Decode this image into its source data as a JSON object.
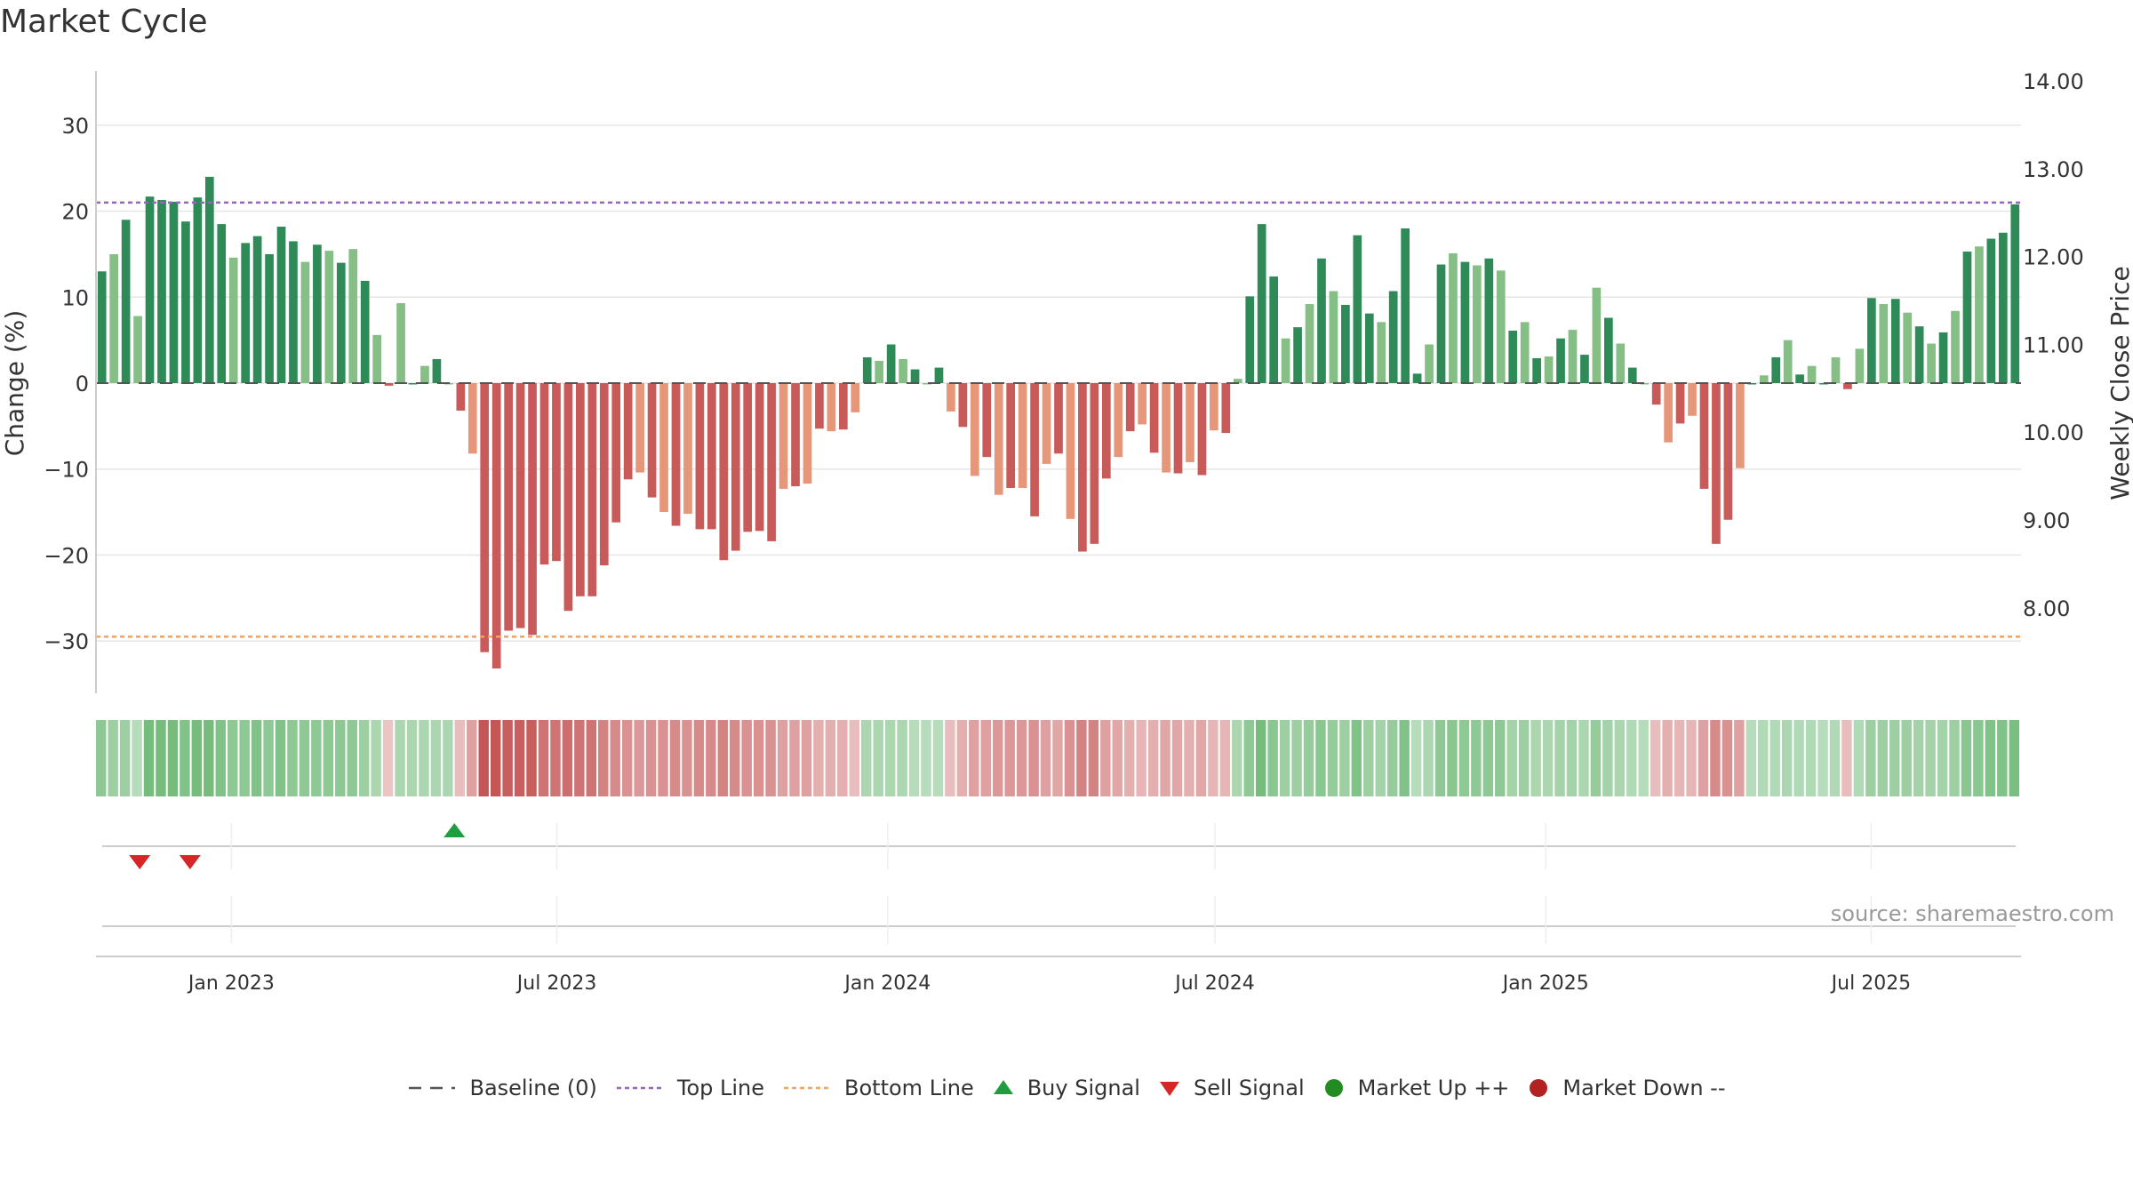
{
  "title": "Market Cycle",
  "source": "source: sharemaestro.com",
  "colors": {
    "up_dark": "#2e8b57",
    "up_light": "#86bf86",
    "down_dark": "#c85a5a",
    "down_light": "#e6977a",
    "top_line": "#9467bd",
    "bottom_line": "#f4a261",
    "buy": "#1e9e3e",
    "sell": "#d62728",
    "market_up": "#228b22",
    "market_down": "#b22222"
  },
  "legend": [
    {
      "key": "baseline",
      "label": "Baseline (0)",
      "icon": "dash-line-icon"
    },
    {
      "key": "top",
      "label": "Top Line",
      "icon": "dotted-line-icon"
    },
    {
      "key": "bottom",
      "label": "Bottom Line",
      "icon": "dotted-line-icon"
    },
    {
      "key": "buy",
      "label": "Buy Signal",
      "icon": "triangle-up-icon"
    },
    {
      "key": "sell",
      "label": "Sell Signal",
      "icon": "triangle-down-icon"
    },
    {
      "key": "mup",
      "label": "Market Up ++",
      "icon": "circle-icon"
    },
    {
      "key": "mdown",
      "label": "Market Down --",
      "icon": "circle-icon"
    }
  ],
  "chart_data": {
    "type": "bar",
    "title": "Market Cycle",
    "ylabel": "Change (%)",
    "y2label": "Weekly Close Price",
    "ylim": [
      -36,
      36
    ],
    "y2lim": [
      7.0,
      14.0
    ],
    "yticks": [
      30,
      20,
      10,
      0,
      -10,
      -20,
      -30
    ],
    "ytick_labels": [
      "30",
      "20",
      "10",
      "0",
      "−10",
      "−20",
      "−30"
    ],
    "y2ticks": [
      14.0,
      13.0,
      12.0,
      11.0,
      10.0,
      9.0,
      8.0
    ],
    "y2tick_labels": [
      "14.00",
      "13.00",
      "12.00",
      "11.00",
      "10.00",
      "9.00",
      "8.00"
    ],
    "top_line": 21,
    "bottom_line": -29.5,
    "grid": true,
    "x_start_date": "2022-10-21",
    "x_end_date": "2025-09-19",
    "xticks": [
      {
        "date": "2023-01-01",
        "label": "Jan 2023"
      },
      {
        "date": "2023-07-01",
        "label": "Jul 2023"
      },
      {
        "date": "2024-01-01",
        "label": "Jan 2024"
      },
      {
        "date": "2024-07-01",
        "label": "Jul 2024"
      },
      {
        "date": "2025-01-01",
        "label": "Jan 2025"
      },
      {
        "date": "2025-07-01",
        "label": "Jul 2025"
      }
    ],
    "series": [
      {
        "values": [
          13,
          15,
          19,
          7.8,
          21.7,
          21.3,
          21.1,
          18.8,
          21.6,
          24,
          18.5,
          14.6,
          16.3,
          17.1,
          15,
          18.2,
          16.5,
          14.1,
          16.1,
          15.4,
          14,
          15.6,
          11.9,
          5.6,
          -0.3,
          9.3,
          0,
          2,
          2.8,
          0,
          -3.2,
          -8.2,
          -31.3,
          -33.2,
          -28.8,
          -28.5,
          -29.3,
          -21.1,
          -20.7,
          -26.5,
          -24.8,
          -24.8,
          -21.2,
          -16.2,
          -11.2,
          -10.4,
          -13.3,
          -15,
          -16.6,
          -15.2,
          -17,
          -17,
          -20.6,
          -19.5,
          -17.3,
          -17.2,
          -18.4,
          -12.3,
          -12,
          -11.7,
          -5.3,
          -5.6,
          -5.4,
          -3.4,
          3,
          2.6,
          4.5,
          2.8,
          1.6,
          0,
          1.8,
          -3.3,
          -5.1,
          -10.8,
          -8.6,
          -13,
          -12.2,
          -12.2,
          -15.5,
          -9.4,
          -8.2,
          -15.8,
          -19.6,
          -18.7,
          -11.1,
          -8.6,
          -5.6,
          -4.8,
          -8.1,
          -10.4,
          -10.5,
          -9.2,
          -10.7,
          -5.5,
          -5.8,
          0.5,
          10.1,
          18.5,
          12.4,
          5.2,
          6.5,
          9.2,
          14.5,
          10.7,
          9.1,
          17.2,
          8.1,
          7.1,
          10.7,
          18,
          1.1,
          4.5,
          13.8,
          15.1,
          14.1,
          13.7,
          14.5,
          13.1,
          6.1,
          7.1,
          2.9,
          3.1,
          5.2,
          6.2,
          3.3,
          11.1,
          7.6,
          4.6,
          1.8,
          0,
          -2.5,
          -6.9,
          -4.7,
          -3.8,
          -12.3,
          -18.7,
          -15.9,
          -9.9,
          0,
          0.9,
          3,
          5,
          1,
          2,
          0,
          3,
          -0.7,
          4,
          9.9,
          9.2,
          9.8,
          8.2,
          6.6,
          4.6,
          5.9,
          8.4,
          15.3,
          15.9,
          16.8,
          17.5,
          20.8
        ]
      }
    ],
    "strip_intensity": [
      0.5,
      0.4,
      0.4,
      0.2,
      0.7,
      0.7,
      0.7,
      0.6,
      0.7,
      0.7,
      0.6,
      0.5,
      0.5,
      0.6,
      0.5,
      0.6,
      0.5,
      0.5,
      0.5,
      0.5,
      0.5,
      0.5,
      0.4,
      0.3,
      -0.15,
      0.3,
      0.3,
      0.3,
      0.3,
      0.3,
      -0.2,
      -0.4,
      -0.9,
      -0.9,
      -0.85,
      -0.85,
      -0.85,
      -0.7,
      -0.7,
      -0.75,
      -0.7,
      -0.7,
      -0.6,
      -0.55,
      -0.5,
      -0.45,
      -0.5,
      -0.5,
      -0.55,
      -0.5,
      -0.55,
      -0.55,
      -0.6,
      -0.55,
      -0.5,
      -0.5,
      -0.5,
      -0.4,
      -0.4,
      -0.4,
      -0.3,
      -0.3,
      -0.3,
      -0.2,
      0.3,
      0.3,
      0.3,
      0.3,
      0.2,
      0.2,
      0.2,
      -0.2,
      -0.3,
      -0.4,
      -0.4,
      -0.45,
      -0.45,
      -0.45,
      -0.5,
      -0.4,
      -0.35,
      -0.5,
      -0.6,
      -0.6,
      -0.4,
      -0.35,
      -0.3,
      -0.25,
      -0.3,
      -0.35,
      -0.35,
      -0.3,
      -0.35,
      -0.25,
      -0.25,
      0.3,
      0.5,
      0.7,
      0.55,
      0.4,
      0.4,
      0.45,
      0.55,
      0.45,
      0.4,
      0.6,
      0.4,
      0.35,
      0.45,
      0.6,
      0.2,
      0.3,
      0.5,
      0.55,
      0.5,
      0.5,
      0.5,
      0.5,
      0.35,
      0.4,
      0.3,
      0.3,
      0.35,
      0.35,
      0.3,
      0.45,
      0.35,
      0.3,
      0.25,
      0.2,
      -0.2,
      -0.3,
      -0.25,
      -0.25,
      -0.4,
      -0.55,
      -0.5,
      -0.4,
      0.2,
      0.25,
      0.25,
      0.3,
      0.25,
      0.25,
      0.2,
      0.25,
      -0.2,
      0.25,
      0.4,
      0.4,
      0.4,
      0.4,
      0.35,
      0.35,
      0.35,
      0.4,
      0.55,
      0.55,
      0.6,
      0.6,
      0.65
    ],
    "buy_signals": [
      "2023-05-05"
    ],
    "sell_signals": [
      "2022-11-11",
      "2022-12-09"
    ]
  }
}
